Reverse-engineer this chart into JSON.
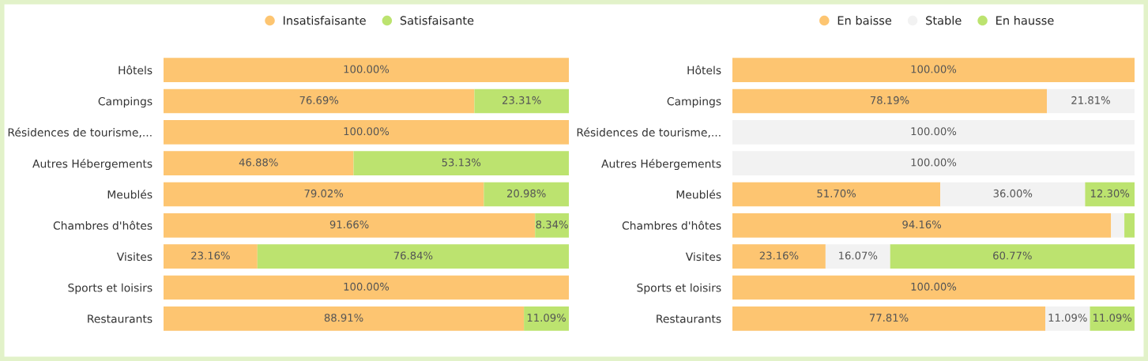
{
  "chart_data": [
    {
      "type": "bar",
      "orientation": "horizontal",
      "stacked": true,
      "legend": "top",
      "tick_labels": "y",
      "xlim": [
        0,
        100
      ],
      "categories": [
        "Hôtels",
        "Campings",
        "Résidences de tourisme,...",
        "Autres Hébergements",
        "Meublés",
        "Chambres d'hôtes",
        "Visites",
        "Sports et loisirs",
        "Restaurants"
      ],
      "series": [
        {
          "name": "Insatisfaisante",
          "color": "#fdc571",
          "values": [
            100,
            76.69,
            100,
            46.88,
            79.02,
            91.66,
            23.16,
            100,
            88.91
          ],
          "value_labels": [
            "100.00%",
            "76.69%",
            "100.00%",
            "46.88%",
            "79.02%",
            "91.66%",
            "23.16%",
            "100.00%",
            "88.91%"
          ]
        },
        {
          "name": "Satisfaisante",
          "color": "#bce36f",
          "values": [
            null,
            23.31,
            null,
            53.13,
            20.98,
            8.34,
            76.84,
            null,
            11.09
          ],
          "value_labels": [
            null,
            "23.31%",
            null,
            "53.13%",
            "20.98%",
            "8.34%",
            "76.84%",
            null,
            "11.09%"
          ]
        }
      ]
    },
    {
      "type": "bar",
      "orientation": "horizontal",
      "stacked": true,
      "legend": "top",
      "tick_labels": "y",
      "xlim": [
        0,
        100
      ],
      "categories": [
        "Hôtels",
        "Campings",
        "Résidences de tourisme,...",
        "Autres Hébergements",
        "Meublés",
        "Chambres d'hôtes",
        "Visites",
        "Sports et loisirs",
        "Restaurants"
      ],
      "series": [
        {
          "name": "En baisse",
          "color": "#fdc571",
          "values": [
            100,
            78.19,
            null,
            null,
            51.7,
            94.16,
            23.16,
            100,
            77.81
          ],
          "value_labels": [
            "100.00%",
            "78.19%",
            null,
            null,
            "51.70%",
            "94.16%",
            "23.16%",
            "100.00%",
            "77.81%"
          ]
        },
        {
          "name": "Stable",
          "color": "#f2f2f2",
          "values": [
            null,
            21.81,
            100,
            100,
            36.0,
            3.3,
            16.07,
            null,
            11.09
          ],
          "value_labels": [
            null,
            "21.81%",
            "100.00%",
            "100.00%",
            "36.00%",
            null,
            "16.07%",
            null,
            "11.09%"
          ]
        },
        {
          "name": "En hausse",
          "color": "#bce36f",
          "values": [
            null,
            null,
            null,
            null,
            12.3,
            2.54,
            60.77,
            null,
            11.09
          ],
          "value_labels": [
            null,
            null,
            null,
            null,
            "12.30%",
            null,
            "60.77%",
            null,
            "11.09%"
          ]
        }
      ]
    }
  ]
}
